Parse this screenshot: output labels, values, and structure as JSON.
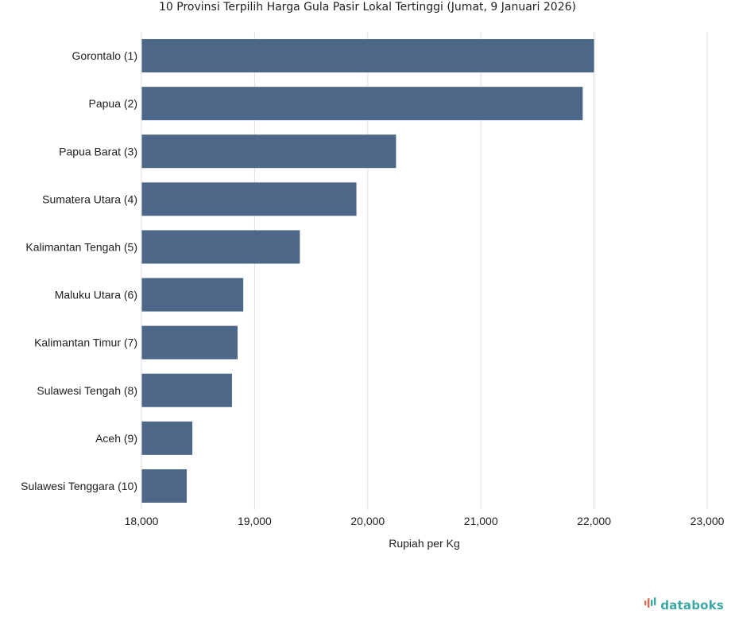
{
  "colors": {
    "bar": "#4d6788",
    "grid": "#dddddd",
    "axis": "#888888",
    "brand": "#3aa7a3",
    "brand_accent": "#e8674a"
  },
  "brand": {
    "name": "databoks",
    "icon": "databoks-logo-icon"
  },
  "chart_data": {
    "type": "bar",
    "orientation": "horizontal",
    "title": "10 Provinsi Terpilih Harga Gula Pasir Lokal Tertinggi (Jumat, 9 Januari 2026)",
    "xlabel": "Rupiah per Kg",
    "ylabel": "",
    "xlim": [
      18000,
      23000
    ],
    "xticks": [
      18000,
      19000,
      20000,
      21000,
      22000,
      23000
    ],
    "xtick_labels": [
      "18,000",
      "19,000",
      "20,000",
      "21,000",
      "22,000",
      "23,000"
    ],
    "grid": "vertical",
    "categories": [
      "Gorontalo (1)",
      "Papua (2)",
      "Papua Barat (3)",
      "Sumatera Utara (4)",
      "Kalimantan Tengah (5)",
      "Maluku Utara (6)",
      "Kalimantan Timur (7)",
      "Sulawesi Tengah (8)",
      "Aceh (9)",
      "Sulawesi Tenggara (10)"
    ],
    "values": [
      22000,
      21900,
      20250,
      19900,
      19400,
      18900,
      18850,
      18800,
      18450,
      18400
    ]
  }
}
